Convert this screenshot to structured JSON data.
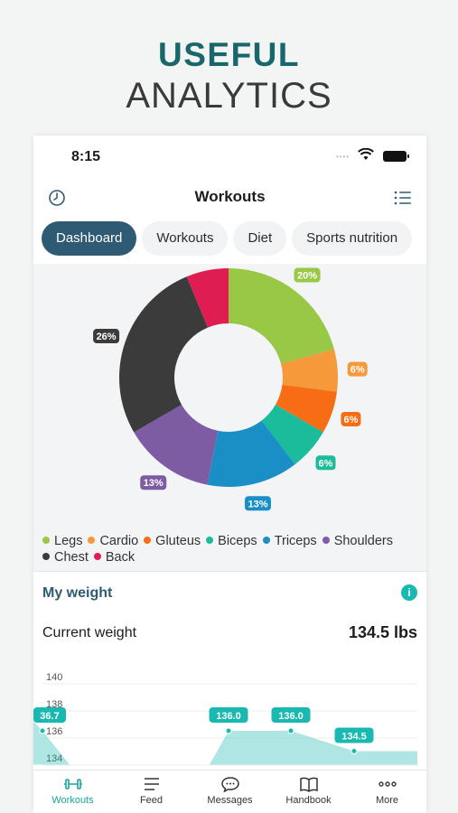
{
  "promo": {
    "line1": "USEFUL",
    "line2": "ANALYTICS"
  },
  "status_bar": {
    "time": "8:15"
  },
  "nav": {
    "title": "Workouts",
    "left_icon": "clock-icon",
    "right_icon": "list-icon"
  },
  "tabs": [
    {
      "label": "Dashboard",
      "active": true
    },
    {
      "label": "Workouts",
      "active": false
    },
    {
      "label": "Diet",
      "active": false
    },
    {
      "label": "Sports nutrition",
      "active": false
    }
  ],
  "chart_data": [
    {
      "type": "pie",
      "categories": [
        "Legs",
        "Cardio",
        "Gluteus",
        "Biceps",
        "Triceps",
        "Shoulders",
        "Chest",
        "Back"
      ],
      "values": [
        20,
        6,
        6,
        6,
        13,
        13,
        26,
        6
      ],
      "labels": [
        "20%",
        "6%",
        "6%",
        "6%",
        "13%",
        "13%",
        "26%",
        "6%"
      ],
      "colors": [
        "#98c845",
        "#f6993b",
        "#f76d13",
        "#1bbc9b",
        "#1a8fc6",
        "#7d5ca4",
        "#3b3b3b",
        "#e01d52"
      ],
      "legend": "bottom"
    },
    {
      "type": "area",
      "y_ticks": [
        "140",
        "138",
        "136",
        "134"
      ],
      "ylim": [
        133,
        141
      ],
      "labels": [
        "36.7",
        "136.0",
        "136.0",
        "134.5"
      ],
      "color": "#19b8b0"
    }
  ],
  "weight": {
    "section_title": "My weight",
    "info_icon": "info-icon",
    "current_label": "Current weight",
    "current_value": "134.5 lbs"
  },
  "tabbar": [
    {
      "label": "Workouts",
      "icon": "dumbbell-icon",
      "active": true
    },
    {
      "label": "Feed",
      "icon": "feed-icon",
      "active": false
    },
    {
      "label": "Messages",
      "icon": "messages-icon",
      "active": false
    },
    {
      "label": "Handbook",
      "icon": "book-icon",
      "active": false
    },
    {
      "label": "More",
      "icon": "more-icon",
      "active": false
    }
  ]
}
